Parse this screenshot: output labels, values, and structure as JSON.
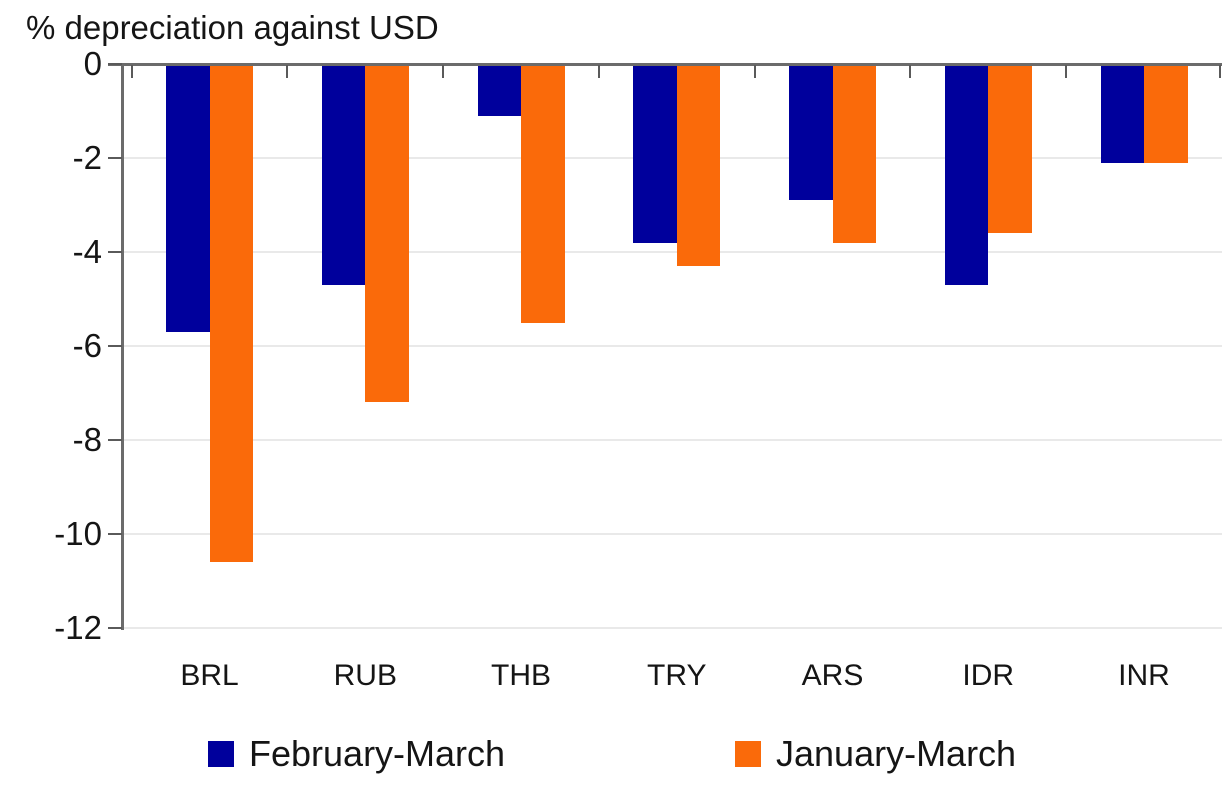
{
  "chart_data": {
    "type": "bar",
    "title": "% depreciation against USD",
    "categories": [
      "BRL",
      "RUB",
      "THB",
      "TRY",
      "ARS",
      "IDR",
      "INR"
    ],
    "series": [
      {
        "name": "February-March",
        "color": "#00009C",
        "values": [
          -5.7,
          -4.7,
          -1.1,
          -3.8,
          -2.9,
          -4.7,
          -2.1
        ]
      },
      {
        "name": "January-March",
        "color": "#FA6A0A",
        "values": [
          -10.6,
          -7.2,
          -5.5,
          -4.3,
          -3.8,
          -3.6,
          -2.1
        ]
      }
    ],
    "y_ticks": [
      0,
      -2,
      -4,
      -6,
      -8,
      -10,
      -12
    ],
    "ylim": [
      -12,
      0
    ],
    "xlabel": "",
    "ylabel": "",
    "grid": true,
    "legend_position": "bottom",
    "axis_color": "#6b6b6b",
    "gridline_color": "#e9e9e9"
  }
}
